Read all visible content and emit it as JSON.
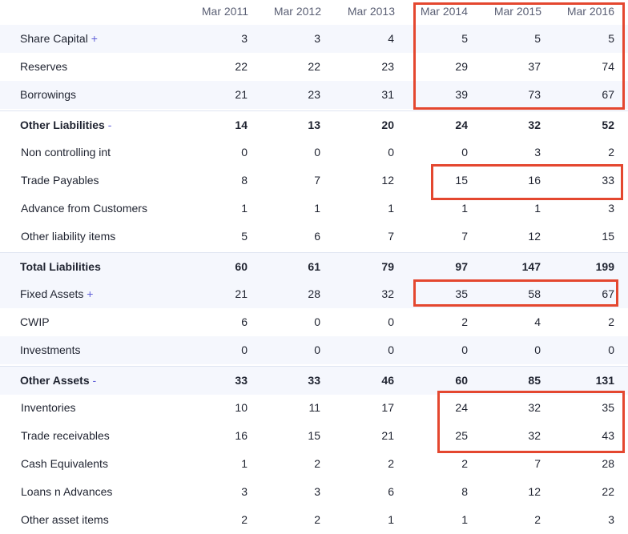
{
  "columns": [
    "Mar 2011",
    "Mar 2012",
    "Mar 2013",
    "Mar 2014",
    "Mar 2015",
    "Mar 2016"
  ],
  "rows": [
    {
      "label": "Share Capital",
      "toggle": "+",
      "values": [
        "3",
        "3",
        "4",
        "5",
        "5",
        "5"
      ]
    },
    {
      "label": "Reserves",
      "toggle": "",
      "values": [
        "22",
        "22",
        "23",
        "29",
        "37",
        "74"
      ]
    },
    {
      "label": "Borrowings",
      "toggle": "",
      "values": [
        "21",
        "23",
        "31",
        "39",
        "73",
        "67"
      ]
    },
    {
      "label": "Other Liabilities",
      "toggle": "-",
      "values": [
        "14",
        "13",
        "20",
        "24",
        "32",
        "52"
      ]
    },
    {
      "label": "Non controlling int",
      "toggle": "",
      "values": [
        "0",
        "0",
        "0",
        "0",
        "3",
        "2"
      ]
    },
    {
      "label": "Trade Payables",
      "toggle": "",
      "values": [
        "8",
        "7",
        "12",
        "15",
        "16",
        "33"
      ]
    },
    {
      "label": "Advance from Customers",
      "toggle": "",
      "values": [
        "1",
        "1",
        "1",
        "1",
        "1",
        "3"
      ]
    },
    {
      "label": "Other liability items",
      "toggle": "",
      "values": [
        "5",
        "6",
        "7",
        "7",
        "12",
        "15"
      ]
    },
    {
      "label": "Total Liabilities",
      "toggle": "",
      "values": [
        "60",
        "61",
        "79",
        "97",
        "147",
        "199"
      ]
    },
    {
      "label": "Fixed Assets",
      "toggle": "+",
      "values": [
        "21",
        "28",
        "32",
        "35",
        "58",
        "67"
      ]
    },
    {
      "label": "CWIP",
      "toggle": "",
      "values": [
        "6",
        "0",
        "0",
        "2",
        "4",
        "2"
      ]
    },
    {
      "label": "Investments",
      "toggle": "",
      "values": [
        "0",
        "0",
        "0",
        "0",
        "0",
        "0"
      ]
    },
    {
      "label": "Other Assets",
      "toggle": "-",
      "values": [
        "33",
        "33",
        "46",
        "60",
        "85",
        "131"
      ]
    },
    {
      "label": "Inventories",
      "toggle": "",
      "values": [
        "10",
        "11",
        "17",
        "24",
        "32",
        "35"
      ]
    },
    {
      "label": "Trade receivables",
      "toggle": "",
      "values": [
        "16",
        "15",
        "21",
        "25",
        "32",
        "43"
      ]
    },
    {
      "label": "Cash Equivalents",
      "toggle": "",
      "values": [
        "1",
        "2",
        "2",
        "2",
        "7",
        "28"
      ]
    },
    {
      "label": "Loans n Advances",
      "toggle": "",
      "values": [
        "3",
        "3",
        "6",
        "8",
        "12",
        "22"
      ]
    },
    {
      "label": "Other asset items",
      "toggle": "",
      "values": [
        "2",
        "2",
        "1",
        "1",
        "2",
        "3"
      ]
    }
  ],
  "colors": {
    "highlight": "#e4472f",
    "toggle": "#6160d8",
    "shade": "#f5f7fd"
  }
}
